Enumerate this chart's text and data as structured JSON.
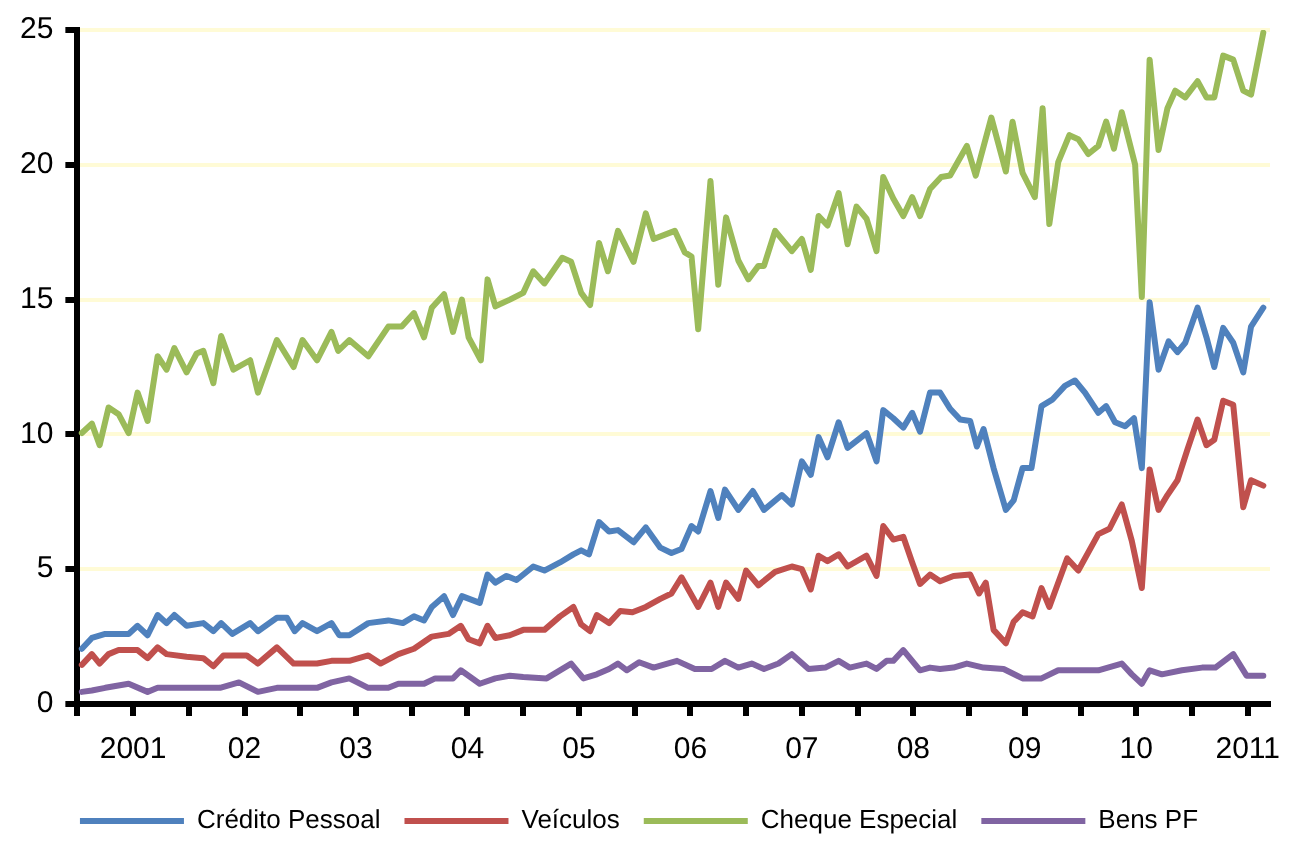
{
  "chart_data": {
    "type": "line",
    "legend": "bottom",
    "grid": "y",
    "marker": "none",
    "line_style": "solid",
    "xlim": [
      2000.5,
      2011.2
    ],
    "xticks": [
      {
        "value": 2000.5,
        "label": null
      },
      {
        "value": 2001,
        "label": "2001"
      },
      {
        "value": 2001.5,
        "label": null
      },
      {
        "value": 2002,
        "label": "02"
      },
      {
        "value": 2002.5,
        "label": null
      },
      {
        "value": 2003,
        "label": "03"
      },
      {
        "value": 2003.5,
        "label": null
      },
      {
        "value": 2004,
        "label": "04"
      },
      {
        "value": 2004.5,
        "label": null
      },
      {
        "value": 2005,
        "label": "05"
      },
      {
        "value": 2005.5,
        "label": null
      },
      {
        "value": 2006,
        "label": "06"
      },
      {
        "value": 2006.5,
        "label": null
      },
      {
        "value": 2007,
        "label": "07"
      },
      {
        "value": 2007.5,
        "label": null
      },
      {
        "value": 2008,
        "label": "08"
      },
      {
        "value": 2008.5,
        "label": null
      },
      {
        "value": 2009,
        "label": "09"
      },
      {
        "value": 2009.5,
        "label": null
      },
      {
        "value": 2010,
        "label": "10"
      },
      {
        "value": 2010.5,
        "label": null
      },
      {
        "value": 2011,
        "label": "2011"
      }
    ],
    "ylim": [
      0,
      25
    ],
    "yticks": [
      0,
      5,
      10,
      15,
      20,
      25
    ],
    "series": [
      {
        "name": "Crédito Pessoal",
        "color": "#4f81bd",
        "x": [
          2000.54,
          2000.63,
          2000.75,
          2000.96,
          2001.04,
          2001.13,
          2001.22,
          2001.3,
          2001.37,
          2001.48,
          2001.63,
          2001.72,
          2001.79,
          2001.89,
          2002.05,
          2002.12,
          2002.29,
          2002.38,
          2002.45,
          2002.52,
          2002.65,
          2002.78,
          2002.85,
          2002.94,
          2003.11,
          2003.29,
          2003.42,
          2003.52,
          2003.61,
          2003.68,
          2003.79,
          2003.87,
          2003.95,
          2004.11,
          2004.18,
          2004.25,
          2004.35,
          2004.44,
          2004.59,
          2004.69,
          2004.83,
          2004.95,
          2005.02,
          2005.09,
          2005.18,
          2005.27,
          2005.35,
          2005.49,
          2005.6,
          2005.73,
          2005.83,
          2005.92,
          2006.01,
          2006.07,
          2006.18,
          2006.25,
          2006.31,
          2006.43,
          2006.56,
          2006.66,
          2006.82,
          2006.91,
          2007,
          2007.08,
          2007.15,
          2007.23,
          2007.33,
          2007.41,
          2007.58,
          2007.67,
          2007.73,
          2007.82,
          2007.91,
          2007.99,
          2008.06,
          2008.15,
          2008.24,
          2008.33,
          2008.42,
          2008.51,
          2008.57,
          2008.63,
          2008.72,
          2008.83,
          2008.9,
          2008.98,
          2009.06,
          2009.15,
          2009.25,
          2009.36,
          2009.45,
          2009.54,
          2009.66,
          2009.73,
          2009.81,
          2009.9,
          2009.98,
          2010.05,
          2010.12,
          2010.2,
          2010.29,
          2010.37,
          2010.44,
          2010.55,
          2010.63,
          2010.7,
          2010.78,
          2010.87,
          2010.96,
          2011.03,
          2011.14
        ],
        "values": [
          2.05,
          2.45,
          2.6,
          2.6,
          2.9,
          2.55,
          3.3,
          3.0,
          3.3,
          2.9,
          3.0,
          2.7,
          3.0,
          2.6,
          3.0,
          2.7,
          3.2,
          3.2,
          2.7,
          3.0,
          2.7,
          3.0,
          2.55,
          2.55,
          3.0,
          3.1,
          3.0,
          3.25,
          3.1,
          3.6,
          4.0,
          3.3,
          4.0,
          3.75,
          4.8,
          4.5,
          4.75,
          4.6,
          5.1,
          4.95,
          5.25,
          5.55,
          5.7,
          5.55,
          6.75,
          6.4,
          6.45,
          6.0,
          6.55,
          5.8,
          5.6,
          5.75,
          6.6,
          6.4,
          7.9,
          6.9,
          7.95,
          7.2,
          7.9,
          7.2,
          7.75,
          7.4,
          9.0,
          8.5,
          9.9,
          9.15,
          10.45,
          9.5,
          10.05,
          9.0,
          10.9,
          10.6,
          10.25,
          10.8,
          10.1,
          11.55,
          11.55,
          10.95,
          10.55,
          10.5,
          9.55,
          10.2,
          8.75,
          7.2,
          7.55,
          8.75,
          8.75,
          11.05,
          11.3,
          11.8,
          12.0,
          11.55,
          10.8,
          11.05,
          10.45,
          10.3,
          10.6,
          8.75,
          14.9,
          12.4,
          13.45,
          13.05,
          13.4,
          14.7,
          13.6,
          12.5,
          13.95,
          13.4,
          12.3,
          14.0,
          14.7
        ]
      },
      {
        "name": "Veículos",
        "color": "#c0504d",
        "x": [
          2000.54,
          2000.63,
          2000.7,
          2000.78,
          2000.87,
          2001.04,
          2001.13,
          2001.22,
          2001.3,
          2001.48,
          2001.63,
          2001.72,
          2001.81,
          2002.02,
          2002.12,
          2002.29,
          2002.44,
          2002.65,
          2002.78,
          2002.94,
          2003.11,
          2003.22,
          2003.38,
          2003.52,
          2003.68,
          2003.83,
          2003.94,
          2004.01,
          2004.11,
          2004.18,
          2004.25,
          2004.38,
          2004.5,
          2004.69,
          2004.83,
          2004.95,
          2005.02,
          2005.1,
          2005.16,
          2005.27,
          2005.37,
          2005.48,
          2005.6,
          2005.73,
          2005.83,
          2005.92,
          2006.07,
          2006.18,
          2006.25,
          2006.32,
          2006.43,
          2006.5,
          2006.61,
          2006.76,
          2006.91,
          2007,
          2007.08,
          2007.15,
          2007.23,
          2007.33,
          2007.41,
          2007.58,
          2007.67,
          2007.73,
          2007.82,
          2007.91,
          2007.99,
          2008.06,
          2008.15,
          2008.24,
          2008.36,
          2008.51,
          2008.59,
          2008.65,
          2008.72,
          2008.83,
          2008.9,
          2008.98,
          2009.07,
          2009.15,
          2009.22,
          2009.38,
          2009.48,
          2009.66,
          2009.76,
          2009.87,
          2009.96,
          2010.05,
          2010.12,
          2010.2,
          2010.28,
          2010.37,
          2010.46,
          2010.55,
          2010.63,
          2010.7,
          2010.78,
          2010.87,
          2010.96,
          2011.03,
          2011.14
        ],
        "values": [
          1.45,
          1.85,
          1.5,
          1.85,
          2.0,
          2.0,
          1.7,
          2.1,
          1.85,
          1.75,
          1.7,
          1.4,
          1.8,
          1.8,
          1.5,
          2.1,
          1.5,
          1.5,
          1.6,
          1.6,
          1.8,
          1.5,
          1.85,
          2.05,
          2.5,
          2.6,
          2.9,
          2.4,
          2.25,
          2.9,
          2.45,
          2.55,
          2.75,
          2.75,
          3.25,
          3.6,
          2.95,
          2.7,
          3.3,
          3.0,
          3.45,
          3.4,
          3.6,
          3.9,
          4.1,
          4.7,
          3.6,
          4.5,
          3.6,
          4.5,
          3.9,
          4.95,
          4.4,
          4.9,
          5.1,
          5.0,
          4.25,
          5.5,
          5.3,
          5.55,
          5.1,
          5.5,
          4.75,
          6.6,
          6.1,
          6.2,
          5.25,
          4.45,
          4.8,
          4.55,
          4.75,
          4.8,
          4.1,
          4.5,
          2.75,
          2.25,
          3.05,
          3.4,
          3.25,
          4.3,
          3.6,
          5.4,
          4.95,
          6.3,
          6.5,
          7.4,
          6.05,
          4.3,
          8.7,
          7.2,
          7.75,
          8.3,
          9.45,
          10.55,
          9.6,
          9.8,
          11.25,
          11.1,
          7.3,
          8.3,
          8.1
        ]
      },
      {
        "name": "Cheque Especial",
        "color": "#9bbb59",
        "x": [
          2000.54,
          2000.63,
          2000.7,
          2000.78,
          2000.87,
          2000.96,
          2001.04,
          2001.13,
          2001.22,
          2001.3,
          2001.37,
          2001.48,
          2001.57,
          2001.63,
          2001.72,
          2001.79,
          2001.9,
          2002.05,
          2002.12,
          2002.29,
          2002.44,
          2002.52,
          2002.65,
          2002.78,
          2002.84,
          2002.94,
          2003.11,
          2003.29,
          2003.41,
          2003.52,
          2003.61,
          2003.68,
          2003.79,
          2003.87,
          2003.95,
          2004.01,
          2004.12,
          2004.18,
          2004.25,
          2004.38,
          2004.5,
          2004.59,
          2004.69,
          2004.85,
          2004.93,
          2005.02,
          2005.1,
          2005.18,
          2005.26,
          2005.35,
          2005.49,
          2005.6,
          2005.67,
          2005.86,
          2005.95,
          2006.01,
          2006.07,
          2006.18,
          2006.25,
          2006.32,
          2006.43,
          2006.52,
          2006.61,
          2006.66,
          2006.76,
          2006.91,
          2007,
          2007.08,
          2007.15,
          2007.23,
          2007.33,
          2007.41,
          2007.49,
          2007.58,
          2007.67,
          2007.73,
          2007.82,
          2007.91,
          2007.99,
          2008.06,
          2008.15,
          2008.25,
          2008.33,
          2008.48,
          2008.56,
          2008.7,
          2008.83,
          2008.89,
          2008.98,
          2009.09,
          2009.16,
          2009.22,
          2009.3,
          2009.4,
          2009.48,
          2009.57,
          2009.66,
          2009.73,
          2009.8,
          2009.87,
          2009.99,
          2010.05,
          2010.12,
          2010.2,
          2010.28,
          2010.35,
          2010.44,
          2010.55,
          2010.63,
          2010.7,
          2010.78,
          2010.87,
          2010.96,
          2011.03,
          2011.14
        ],
        "values": [
          10.05,
          10.4,
          9.6,
          11.0,
          10.75,
          10.05,
          11.55,
          10.5,
          12.9,
          12.4,
          13.2,
          12.3,
          13.0,
          13.1,
          11.9,
          13.65,
          12.4,
          12.75,
          11.55,
          13.5,
          12.5,
          13.5,
          12.75,
          13.8,
          13.1,
          13.5,
          12.9,
          14.0,
          14.0,
          14.5,
          13.6,
          14.7,
          15.2,
          13.8,
          15.0,
          13.6,
          12.75,
          15.75,
          14.75,
          15.0,
          15.25,
          16.05,
          15.6,
          16.55,
          16.4,
          15.25,
          14.8,
          17.1,
          16.05,
          17.55,
          16.4,
          18.2,
          17.25,
          17.55,
          16.75,
          16.6,
          13.9,
          19.4,
          15.55,
          18.05,
          16.45,
          15.75,
          16.25,
          16.25,
          17.55,
          16.8,
          17.25,
          16.1,
          18.1,
          17.75,
          18.95,
          17.05,
          18.45,
          18.0,
          16.8,
          19.55,
          18.75,
          18.1,
          18.8,
          18.1,
          19.1,
          19.55,
          19.6,
          20.7,
          19.6,
          21.75,
          19.75,
          21.6,
          19.7,
          18.8,
          22.1,
          17.8,
          20.1,
          21.1,
          20.95,
          20.4,
          20.7,
          21.6,
          20.6,
          21.95,
          20.0,
          15.1,
          23.9,
          20.55,
          22.1,
          22.75,
          22.5,
          23.1,
          22.5,
          22.5,
          24.05,
          23.9,
          22.75,
          22.6,
          24.9
        ]
      },
      {
        "name": "Bens PF",
        "color": "#8064a2",
        "x": [
          2000.54,
          2000.63,
          2000.75,
          2000.96,
          2001.13,
          2001.22,
          2001.48,
          2001.78,
          2001.95,
          2002.12,
          2002.29,
          2002.65,
          2002.78,
          2002.94,
          2003.11,
          2003.29,
          2003.38,
          2003.61,
          2003.71,
          2003.87,
          2003.94,
          2004.11,
          2004.25,
          2004.38,
          2004.5,
          2004.71,
          2004.93,
          2005.04,
          2005.16,
          2005.27,
          2005.35,
          2005.43,
          2005.54,
          2005.67,
          2005.88,
          2006.04,
          2006.19,
          2006.31,
          2006.43,
          2006.55,
          2006.66,
          2006.79,
          2006.91,
          2007.06,
          2007.21,
          2007.33,
          2007.43,
          2007.58,
          2007.67,
          2007.76,
          2007.82,
          2007.91,
          2008.06,
          2008.15,
          2008.24,
          2008.36,
          2008.48,
          2008.63,
          2008.81,
          2008.98,
          2009.15,
          2009.3,
          2009.51,
          2009.66,
          2009.87,
          2009.96,
          2010.05,
          2010.12,
          2010.23,
          2010.41,
          2010.59,
          2010.71,
          2010.87,
          2010.99,
          2011.14
        ],
        "values": [
          0.45,
          0.5,
          0.6,
          0.75,
          0.45,
          0.6,
          0.6,
          0.6,
          0.8,
          0.45,
          0.6,
          0.6,
          0.8,
          0.95,
          0.6,
          0.6,
          0.75,
          0.75,
          0.95,
          0.95,
          1.25,
          0.75,
          0.95,
          1.05,
          1.0,
          0.95,
          1.5,
          0.95,
          1.1,
          1.3,
          1.5,
          1.25,
          1.55,
          1.35,
          1.6,
          1.3,
          1.3,
          1.6,
          1.35,
          1.5,
          1.3,
          1.5,
          1.85,
          1.3,
          1.35,
          1.6,
          1.35,
          1.5,
          1.3,
          1.6,
          1.6,
          2.0,
          1.25,
          1.35,
          1.3,
          1.35,
          1.5,
          1.35,
          1.3,
          0.95,
          0.95,
          1.25,
          1.25,
          1.25,
          1.5,
          1.1,
          0.75,
          1.25,
          1.1,
          1.25,
          1.35,
          1.35,
          1.85,
          1.05,
          1.05
        ]
      }
    ]
  }
}
